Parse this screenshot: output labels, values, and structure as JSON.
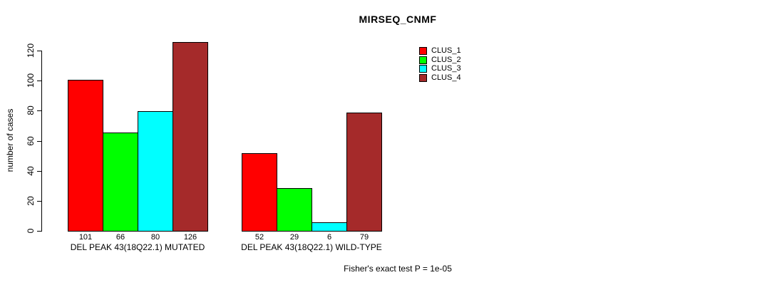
{
  "chart_data": {
    "type": "bar",
    "title": "MIRSEQ_CNMF",
    "xlabel": "",
    "ylabel": "number of cases",
    "ylim": [
      0,
      120
    ],
    "yticks": [
      0,
      20,
      40,
      60,
      80,
      100,
      120
    ],
    "grid": false,
    "legend_position": "top-right",
    "show_value_labels": true,
    "categories": [
      "DEL PEAK 43(18Q22.1) MUTATED",
      "DEL PEAK 43(18Q22.1) WILD-TYPE"
    ],
    "series": [
      {
        "name": "CLUS_1",
        "color": "#FF0000",
        "values": [
          101,
          52
        ]
      },
      {
        "name": "CLUS_2",
        "color": "#00FF00",
        "values": [
          66,
          29
        ]
      },
      {
        "name": "CLUS_3",
        "color": "#00FFFF",
        "values": [
          80,
          6
        ]
      },
      {
        "name": "CLUS_4",
        "color": "#A52A2A",
        "values": [
          126,
          79
        ]
      }
    ],
    "annotation": "Fisher's exact test P = 1e-05"
  },
  "colors": {
    "axis": "#000000",
    "text": "#000000",
    "background": "#FFFFFF"
  }
}
